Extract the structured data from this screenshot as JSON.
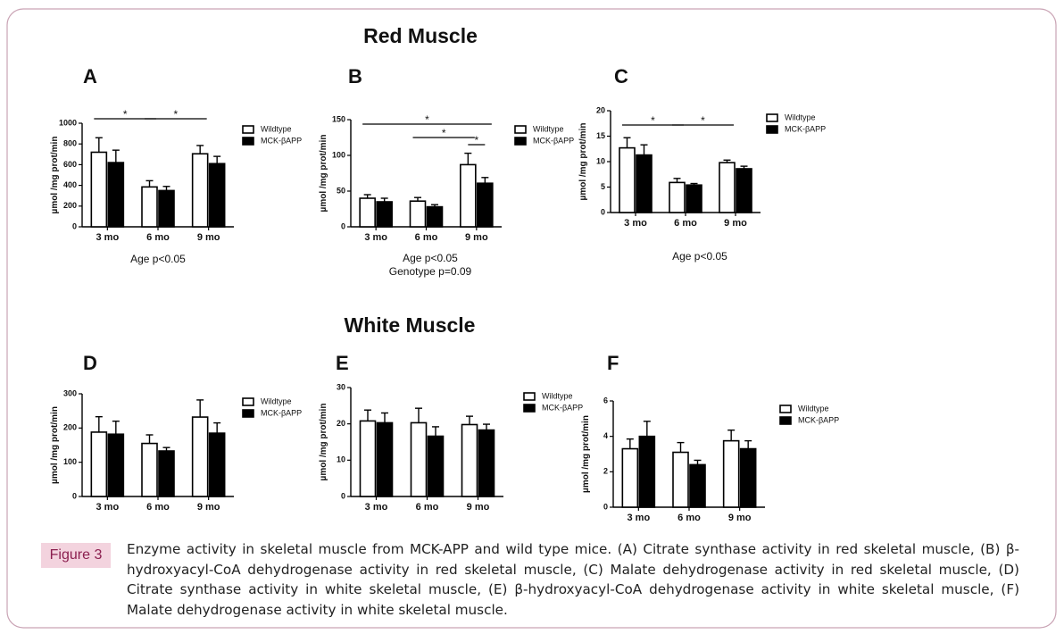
{
  "headings": [
    "Red Muscle",
    "White Muscle"
  ],
  "figure": {
    "label": "Figure 3",
    "caption": "Enzyme activity in skeletal muscle from MCK-APP and wild type mice. (A) Citrate synthase activity in red skeletal muscle, (B) β-hydroxyacyl-CoA dehydrogenase activity in red skeletal muscle, (C) Malate dehydrogenase activity in red skeletal muscle, (D) Citrate synthase activity in white skeletal muscle, (E) β-hydroxyacyl-CoA dehydrogenase activity in white skeletal muscle, (F) Malate dehydrogenase activity in white skeletal muscle."
  },
  "chart_data": [
    {
      "type": "bar",
      "title": "A",
      "ylabel": "µmol /mg prot/min",
      "categories": [
        "3 mo",
        "6 mo",
        "9 mo"
      ],
      "series": [
        {
          "name": "Wildtype",
          "color": "#ffffff",
          "values": [
            720,
            385,
            705
          ],
          "errors": [
            140,
            60,
            80
          ]
        },
        {
          "name": "MCK-βAPP",
          "color": "#000000",
          "values": [
            620,
            350,
            610
          ],
          "errors": [
            120,
            40,
            70
          ]
        }
      ],
      "ylim": [
        0,
        1000
      ],
      "yticks": [
        0,
        200,
        400,
        600,
        800,
        1000
      ],
      "brackets": [
        {
          "from": "3 mo",
          "to": "6 mo",
          "label": "*"
        },
        {
          "from": "6 mo",
          "to": "9 mo",
          "label": "*"
        }
      ],
      "annotations": [
        "Age p<0.05"
      ]
    },
    {
      "type": "bar",
      "title": "B",
      "ylabel": "µmol /mg prot/min",
      "categories": [
        "3 mo",
        "6 mo",
        "9 mo"
      ],
      "series": [
        {
          "name": "Wildtype",
          "color": "#ffffff",
          "values": [
            40,
            36,
            87
          ],
          "errors": [
            5,
            5,
            16
          ]
        },
        {
          "name": "MCK-βAPP",
          "color": "#000000",
          "values": [
            35,
            28,
            61
          ],
          "errors": [
            5,
            3,
            8
          ]
        }
      ],
      "ylim": [
        0,
        150
      ],
      "yticks": [
        0,
        50,
        100,
        150
      ],
      "brackets": [
        {
          "from": "3 mo",
          "to": "9 mo",
          "label": "*"
        },
        {
          "from": "6 mo",
          "to": "9 mo",
          "label": "*"
        },
        {
          "from": "9 mo",
          "to": "9 mo",
          "label": "*"
        }
      ],
      "annotations": [
        "Age p<0.05",
        "Genotype p=0.09"
      ]
    },
    {
      "type": "bar",
      "title": "C",
      "ylabel": "µmol /mg prot/min",
      "categories": [
        "3 mo",
        "6 mo",
        "9 mo"
      ],
      "series": [
        {
          "name": "Wildtype",
          "color": "#ffffff",
          "values": [
            12.7,
            5.9,
            9.8
          ],
          "errors": [
            2,
            0.8,
            0.5
          ]
        },
        {
          "name": "MCK-βAPP",
          "color": "#000000",
          "values": [
            11.3,
            5.4,
            8.6
          ],
          "errors": [
            2,
            0.3,
            0.5
          ]
        }
      ],
      "ylim": [
        0,
        20
      ],
      "yticks": [
        0,
        5,
        10,
        15,
        20
      ],
      "brackets": [
        {
          "from": "3 mo",
          "to": "6 mo",
          "label": "*"
        },
        {
          "from": "6 mo",
          "to": "9 mo",
          "label": "*"
        }
      ],
      "annotations": [
        "Age p<0.05"
      ]
    },
    {
      "type": "bar",
      "title": "D",
      "ylabel": "µmol /mg prot/min",
      "categories": [
        "3 mo",
        "6 mo",
        "9 mo"
      ],
      "series": [
        {
          "name": "Wildtype",
          "color": "#ffffff",
          "values": [
            188,
            155,
            232
          ],
          "errors": [
            45,
            25,
            50
          ]
        },
        {
          "name": "MCK-βAPP",
          "color": "#000000",
          "values": [
            182,
            133,
            185
          ],
          "errors": [
            38,
            10,
            30
          ]
        }
      ],
      "ylim": [
        0,
        300
      ],
      "yticks": [
        0,
        100,
        200,
        300
      ]
    },
    {
      "type": "bar",
      "title": "E",
      "ylabel": "µmol /mg prot/min",
      "categories": [
        "3 mo",
        "6 mo",
        "9 mo"
      ],
      "series": [
        {
          "name": "Wildtype",
          "color": "#ffffff",
          "values": [
            20.8,
            20.3,
            19.8
          ],
          "errors": [
            3,
            4,
            2.3
          ]
        },
        {
          "name": "MCK-βAPP",
          "color": "#000000",
          "values": [
            20.3,
            16.6,
            18.3
          ],
          "errors": [
            2.7,
            2.6,
            1.6
          ]
        }
      ],
      "ylim": [
        0,
        30
      ],
      "yticks": [
        0,
        10,
        20,
        30
      ]
    },
    {
      "type": "bar",
      "title": "F",
      "ylabel": "µmol /mg prot/min",
      "categories": [
        "3 mo",
        "6 mo",
        "9 mo"
      ],
      "series": [
        {
          "name": "Wildtype",
          "color": "#ffffff",
          "values": [
            3.3,
            3.1,
            3.75
          ],
          "errors": [
            0.55,
            0.55,
            0.6
          ]
        },
        {
          "name": "MCK-βAPP",
          "color": "#000000",
          "values": [
            4.0,
            2.4,
            3.3
          ],
          "errors": [
            0.85,
            0.25,
            0.45
          ]
        }
      ],
      "ylim": [
        0,
        6
      ],
      "yticks": [
        0,
        2,
        4,
        6
      ]
    }
  ]
}
